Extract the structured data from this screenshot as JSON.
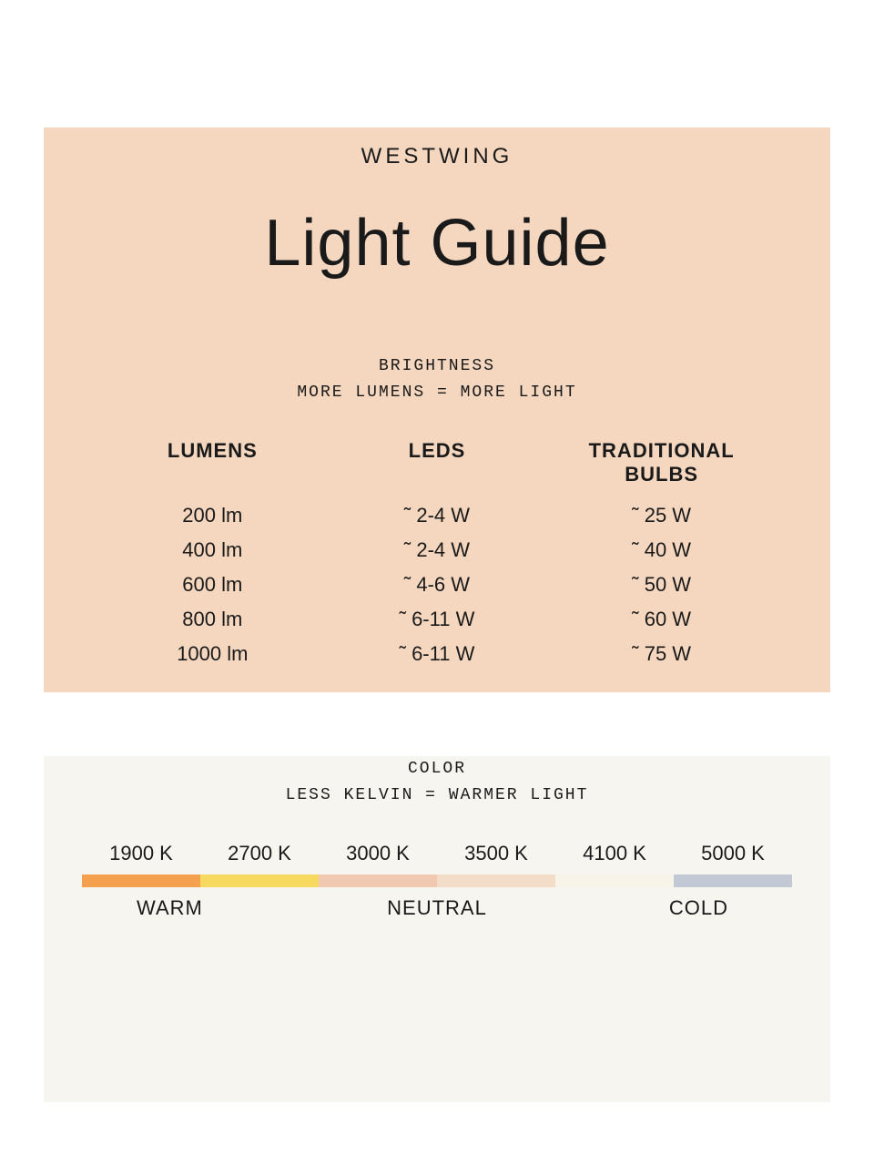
{
  "brand": "WESTWING",
  "title": "Light Guide",
  "colors": {
    "panel_top_bg": "#f5d7bf",
    "panel_bottom_bg": "#f7f5f0",
    "text": "#1a1a1a"
  },
  "brightness": {
    "heading_line1": "BRIGHTNESS",
    "heading_line2": "MORE LUMENS = MORE LIGHT",
    "columns": [
      "LUMENS",
      "LEDS",
      "TRADITIONAL BULBS"
    ],
    "rows": [
      [
        "200 lm",
        "˜ 2-4 W",
        "˜ 25 W"
      ],
      [
        "400 lm",
        "˜ 2-4 W",
        "˜ 40 W"
      ],
      [
        "600 lm",
        "˜ 4-6 W",
        "˜ 50 W"
      ],
      [
        "800 lm",
        "˜ 6-11 W",
        "˜ 60 W"
      ],
      [
        "1000 lm",
        "˜ 6-11 W",
        "˜ 75 W"
      ]
    ]
  },
  "color_temp": {
    "heading_line1": "COLOR",
    "heading_line2": "LESS KELVIN = WARMER LIGHT",
    "kelvin_labels": [
      "1900 K",
      "2700 K",
      "3000 K",
      "3500 K",
      "4100 K",
      "5000 K"
    ],
    "swatches": [
      "#f5a04e",
      "#f6d95e",
      "#f1c9b0",
      "#f3ddc8",
      "#f7f3e9",
      "#c2c9d4"
    ],
    "range_labels": [
      "WARM",
      "NEUTRAL",
      "COLD"
    ]
  }
}
